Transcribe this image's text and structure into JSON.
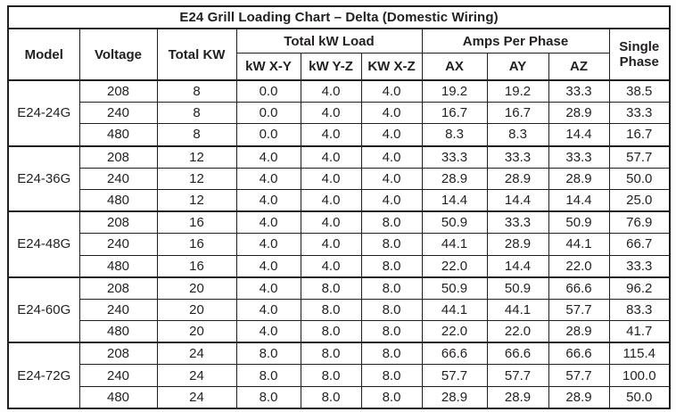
{
  "title": "E24 Grill Loading Chart – Delta (Domestic Wiring)",
  "table": {
    "header": {
      "model": "Model",
      "voltage": "Voltage",
      "total_kw": "Total KW",
      "total_kw_load": "Total kW Load",
      "amps_per_phase": "Amps Per Phase",
      "single_phase": "Single Phase",
      "sub": [
        "kW X-Y",
        "kW Y-Z",
        "KW X-Z",
        "AX",
        "AY",
        "AZ"
      ]
    },
    "row_columns": [
      "Voltage",
      "Total KW",
      "kW X-Y",
      "kW Y-Z",
      "KW X-Z",
      "AX",
      "AY",
      "AZ",
      "Single Phase"
    ],
    "groups": [
      {
        "model": "E24-24G",
        "rows": [
          [
            "208",
            "8",
            "0.0",
            "4.0",
            "4.0",
            "19.2",
            "19.2",
            "33.3",
            "38.5"
          ],
          [
            "240",
            "8",
            "0.0",
            "4.0",
            "4.0",
            "16.7",
            "16.7",
            "28.9",
            "33.3"
          ],
          [
            "480",
            "8",
            "0.0",
            "4.0",
            "4.0",
            "8.3",
            "8.3",
            "14.4",
            "16.7"
          ]
        ]
      },
      {
        "model": "E24-36G",
        "rows": [
          [
            "208",
            "12",
            "4.0",
            "4.0",
            "4.0",
            "33.3",
            "33.3",
            "33.3",
            "57.7"
          ],
          [
            "240",
            "12",
            "4.0",
            "4.0",
            "4.0",
            "28.9",
            "28.9",
            "28.9",
            "50.0"
          ],
          [
            "480",
            "12",
            "4.0",
            "4.0",
            "4.0",
            "14.4",
            "14.4",
            "14.4",
            "25.0"
          ]
        ]
      },
      {
        "model": "E24-48G",
        "rows": [
          [
            "208",
            "16",
            "4.0",
            "4.0",
            "8.0",
            "50.9",
            "33.3",
            "50.9",
            "76.9"
          ],
          [
            "240",
            "16",
            "4.0",
            "4.0",
            "8.0",
            "44.1",
            "28.9",
            "44.1",
            "66.7"
          ],
          [
            "480",
            "16",
            "4.0",
            "4.0",
            "8.0",
            "22.0",
            "14.4",
            "22.0",
            "33.3"
          ]
        ]
      },
      {
        "model": "E24-60G",
        "rows": [
          [
            "208",
            "20",
            "4.0",
            "8.0",
            "8.0",
            "50.9",
            "50.9",
            "66.6",
            "96.2"
          ],
          [
            "240",
            "20",
            "4.0",
            "8.0",
            "8.0",
            "44.1",
            "44.1",
            "57.7",
            "83.3"
          ],
          [
            "480",
            "20",
            "4.0",
            "8.0",
            "8.0",
            "22.0",
            "22.0",
            "28.9",
            "41.7"
          ]
        ]
      },
      {
        "model": "E24-72G",
        "rows": [
          [
            "208",
            "24",
            "8.0",
            "8.0",
            "8.0",
            "66.6",
            "66.6",
            "66.6",
            "115.4"
          ],
          [
            "240",
            "24",
            "8.0",
            "8.0",
            "8.0",
            "57.7",
            "57.7",
            "57.7",
            "100.0"
          ],
          [
            "480",
            "24",
            "8.0",
            "8.0",
            "8.0",
            "28.9",
            "28.9",
            "28.9",
            "50.0"
          ]
        ]
      }
    ]
  }
}
